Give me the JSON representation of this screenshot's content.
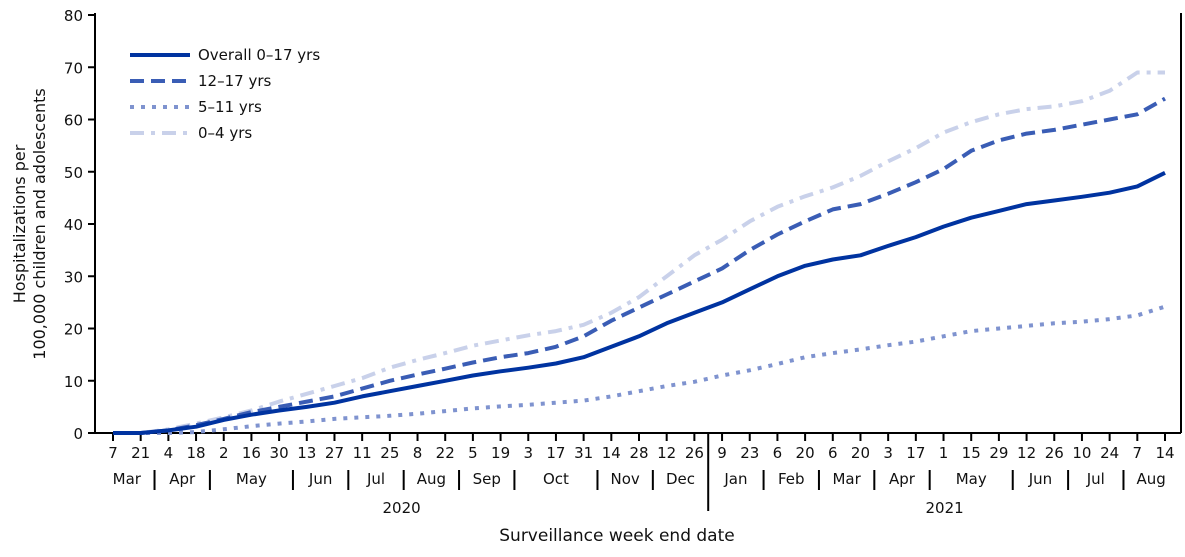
{
  "chart_data": {
    "type": "line",
    "xlabel": "Surveillance week end date",
    "ylabel": [
      "Hospitalizations per",
      "100,000 children and adolescents"
    ],
    "ylim": [
      0,
      80
    ],
    "yticks": [
      0,
      10,
      20,
      30,
      40,
      50,
      60,
      70,
      80
    ],
    "grid": false,
    "legend_position": "top-left",
    "x": [
      "2020-03-07",
      "2020-03-21",
      "2020-04-04",
      "2020-04-18",
      "2020-05-02",
      "2020-05-16",
      "2020-05-30",
      "2020-06-13",
      "2020-06-27",
      "2020-07-11",
      "2020-07-25",
      "2020-08-08",
      "2020-08-22",
      "2020-09-05",
      "2020-09-19",
      "2020-10-03",
      "2020-10-17",
      "2020-10-31",
      "2020-11-14",
      "2020-11-28",
      "2020-12-12",
      "2020-12-26",
      "2021-01-09",
      "2021-01-23",
      "2021-02-06",
      "2021-02-20",
      "2021-03-06",
      "2021-03-20",
      "2021-04-03",
      "2021-04-17",
      "2021-05-01",
      "2021-05-15",
      "2021-05-29",
      "2021-06-12",
      "2021-06-26",
      "2021-07-10",
      "2021-07-24",
      "2021-08-07",
      "2021-08-14"
    ],
    "x_tick_labels": [
      "7",
      "21",
      "4",
      "18",
      "2",
      "16",
      "30",
      "13",
      "27",
      "11",
      "25",
      "8",
      "22",
      "5",
      "19",
      "3",
      "17",
      "31",
      "14",
      "28",
      "12",
      "26",
      "9",
      "23",
      "6",
      "20",
      "6",
      "20",
      "3",
      "17",
      "1",
      "15",
      "29",
      "12",
      "26",
      "10",
      "24",
      "7",
      "14"
    ],
    "months": [
      {
        "label": "Mar",
        "first": 0,
        "last": 1
      },
      {
        "label": "Apr",
        "first": 2,
        "last": 3
      },
      {
        "label": "May",
        "first": 4,
        "last": 6
      },
      {
        "label": "Jun",
        "first": 7,
        "last": 8
      },
      {
        "label": "Jul",
        "first": 9,
        "last": 10
      },
      {
        "label": "Aug",
        "first": 11,
        "last": 12
      },
      {
        "label": "Sep",
        "first": 13,
        "last": 14
      },
      {
        "label": "Oct",
        "first": 15,
        "last": 17
      },
      {
        "label": "Nov",
        "first": 18,
        "last": 19
      },
      {
        "label": "Dec",
        "first": 20,
        "last": 21
      },
      {
        "label": "Jan",
        "first": 22,
        "last": 23
      },
      {
        "label": "Feb",
        "first": 24,
        "last": 25
      },
      {
        "label": "Mar",
        "first": 26,
        "last": 27
      },
      {
        "label": "Apr",
        "first": 28,
        "last": 29
      },
      {
        "label": "May",
        "first": 30,
        "last": 32
      },
      {
        "label": "Jun",
        "first": 33,
        "last": 34
      },
      {
        "label": "Jul",
        "first": 35,
        "last": 36
      },
      {
        "label": "Aug",
        "first": 37,
        "last": 38
      }
    ],
    "years": [
      {
        "label": "2020",
        "first": 0,
        "last": 21
      },
      {
        "label": "2021",
        "first": 22,
        "last": 38
      }
    ],
    "series": [
      {
        "name": "Overall 0–17 yrs",
        "color": "#0033a0",
        "style": "solid",
        "values": [
          0,
          0,
          0.5,
          1.2,
          2.5,
          3.5,
          4.3,
          5,
          5.8,
          7,
          8,
          9,
          10,
          11,
          11.8,
          12.5,
          13.3,
          14.5,
          16.5,
          18.5,
          21,
          23,
          25,
          27.5,
          30,
          32,
          33.2,
          34,
          35.8,
          37.5,
          39.5,
          41.2,
          42.5,
          43.8,
          44.5,
          45.2,
          46,
          47.2,
          49.8
        ]
      },
      {
        "name": "12–17 yrs",
        "color": "#3a5db5",
        "style": "dashed",
        "values": [
          0,
          0,
          0.5,
          1.5,
          2.7,
          4,
          5,
          6,
          7,
          8.5,
          10,
          11.2,
          12.3,
          13.5,
          14.5,
          15.3,
          16.5,
          18.5,
          21.5,
          24,
          26.5,
          29,
          31.5,
          35,
          38,
          40.5,
          42.8,
          43.8,
          45.8,
          48,
          50.5,
          54,
          56,
          57.3,
          58,
          59,
          60,
          61,
          64
        ]
      },
      {
        "name": "5–11 yrs",
        "color": "#7f93cf",
        "style": "dotted",
        "values": [
          0,
          0,
          0,
          0.2,
          0.7,
          1.3,
          1.8,
          2.2,
          2.7,
          3,
          3.3,
          3.7,
          4.2,
          4.7,
          5.1,
          5.4,
          5.8,
          6.2,
          7,
          8,
          9,
          9.8,
          11,
          12,
          13.2,
          14.5,
          15.3,
          16,
          16.8,
          17.5,
          18.5,
          19.5,
          20,
          20.5,
          21,
          21.3,
          21.8,
          22.5,
          24.2
        ]
      },
      {
        "name": "0–4 yrs",
        "color": "#c9d1ea",
        "style": "dashdot",
        "values": [
          0,
          0,
          0.7,
          1.8,
          3,
          4.3,
          6,
          7.5,
          9,
          10.5,
          12.5,
          14,
          15.3,
          16.7,
          17.7,
          18.7,
          19.5,
          20.7,
          23,
          26,
          30,
          34,
          37,
          40.5,
          43.3,
          45.3,
          47,
          49.2,
          52,
          54.5,
          57.5,
          59.5,
          61,
          62,
          62.5,
          63.5,
          65.5,
          69,
          69
        ]
      }
    ]
  }
}
